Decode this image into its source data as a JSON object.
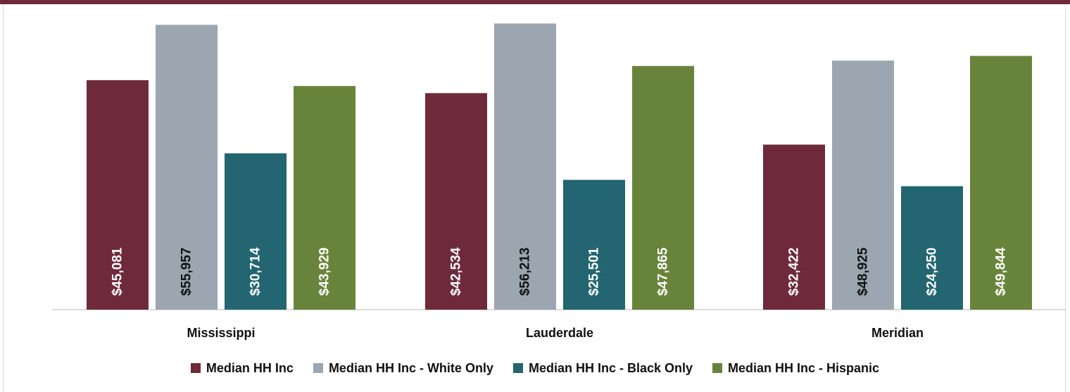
{
  "chart_data": {
    "type": "bar",
    "categories": [
      "Mississippi",
      "Lauderdale",
      "Meridian"
    ],
    "series": [
      {
        "name": "Median HH Inc",
        "color": "#6e2a3b",
        "label_color": "#ffffff",
        "values": [
          45081,
          42534,
          32422
        ]
      },
      {
        "name": "Median HH Inc - White Only",
        "color": "#9ba6b1",
        "label_color": "#111111",
        "values": [
          55957,
          56213,
          48925
        ]
      },
      {
        "name": "Median HH Inc - Black Only",
        "color": "#236570",
        "label_color": "#ffffff",
        "values": [
          30714,
          25501,
          24250
        ]
      },
      {
        "name": "Median HH Inc - Hispanic",
        "color": "#68843b",
        "label_color": "#ffffff",
        "values": [
          43929,
          47865,
          49844
        ]
      }
    ],
    "data_labels": [
      [
        "$45,081",
        "$42,534",
        "$32,422"
      ],
      [
        "$55,957",
        "$56,213",
        "$48,925"
      ],
      [
        "$30,714",
        "$25,501",
        "$24,250"
      ],
      [
        "$43,929",
        "$47,865",
        "$49,844"
      ]
    ],
    "ylim": [
      0,
      60000
    ],
    "grid": false,
    "legend_position": "bottom"
  }
}
